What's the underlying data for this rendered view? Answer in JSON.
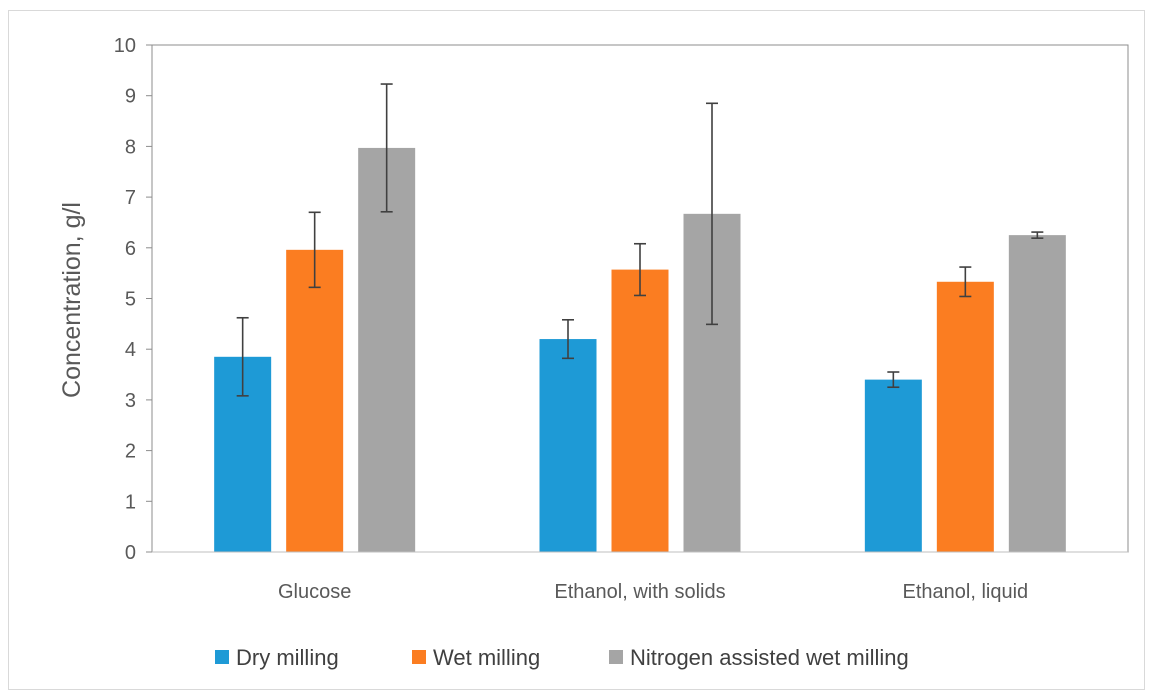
{
  "chart_data": {
    "type": "bar",
    "title": "",
    "xlabel": "",
    "ylabel": "Concentration, g/l",
    "ylim": [
      0,
      10
    ],
    "yticks": [
      0,
      1,
      2,
      3,
      4,
      5,
      6,
      7,
      8,
      9,
      10
    ],
    "categories": [
      "Glucose",
      "Ethanol, with solids",
      "Ethanol, liquid"
    ],
    "series": [
      {
        "name": "Dry milling",
        "color": "#1e9ad6",
        "values": [
          3.85,
          4.2,
          3.4
        ],
        "errors": [
          0.77,
          0.38,
          0.15
        ]
      },
      {
        "name": "Wet milling",
        "color": "#fb7d21",
        "values": [
          5.96,
          5.57,
          5.33
        ],
        "errors": [
          0.74,
          0.51,
          0.29
        ]
      },
      {
        "name": "Nitrogen assisted wet milling",
        "color": "#a5a5a5",
        "values": [
          7.97,
          6.67,
          6.25
        ],
        "errors": [
          1.26,
          2.18,
          0.06
        ]
      }
    ],
    "grid": false,
    "legend_position": "bottom",
    "error_bar_color": "#404040"
  }
}
